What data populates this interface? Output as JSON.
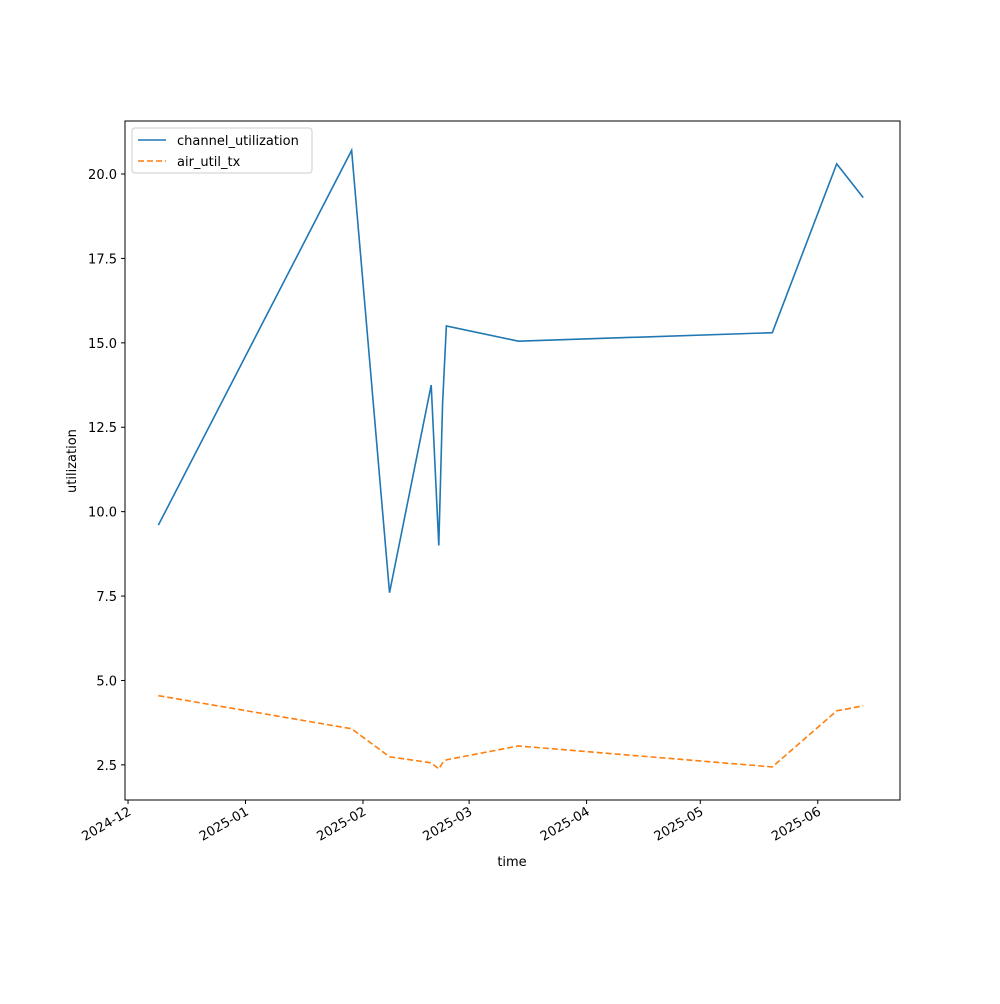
{
  "chart_data": {
    "type": "line",
    "xlabel": "time",
    "ylabel": "utilization",
    "x": [
      20066,
      20117,
      20127,
      20138,
      20140,
      20141,
      20142,
      20161,
      20228,
      20245,
      20252
    ],
    "series": [
      {
        "name": "channel_utilization",
        "color": "#1f77b4",
        "linestyle": "solid",
        "values": [
          9.6,
          20.7,
          7.6,
          13.75,
          9.0,
          13.2,
          15.5,
          15.05,
          15.3,
          20.3,
          19.3
        ]
      },
      {
        "name": "air_util_tx",
        "color": "#ff7f0e",
        "linestyle": "dashed",
        "values": [
          4.55,
          3.57,
          2.74,
          2.56,
          2.38,
          2.56,
          2.65,
          3.06,
          2.44,
          4.1,
          4.25
        ]
      }
    ],
    "xlim": [
      20057.2,
      20261.7
    ],
    "xticks": [
      {
        "value": 20058,
        "label": "2024-12"
      },
      {
        "value": 20089,
        "label": "2025-01"
      },
      {
        "value": 20120,
        "label": "2025-02"
      },
      {
        "value": 20148,
        "label": "2025-03"
      },
      {
        "value": 20179,
        "label": "2025-04"
      },
      {
        "value": 20209,
        "label": "2025-05"
      },
      {
        "value": 20240,
        "label": "2025-06"
      }
    ],
    "ylim": [
      1.46,
      21.57
    ],
    "yticks": [
      2.5,
      {
        "value": 5,
        "label": "5.0"
      },
      7.5,
      {
        "value": 10,
        "label": "10.0"
      },
      12.5,
      {
        "value": 15,
        "label": "15.0"
      },
      17.5,
      {
        "value": 20,
        "label": "20.0"
      }
    ],
    "legend": "upper left"
  }
}
